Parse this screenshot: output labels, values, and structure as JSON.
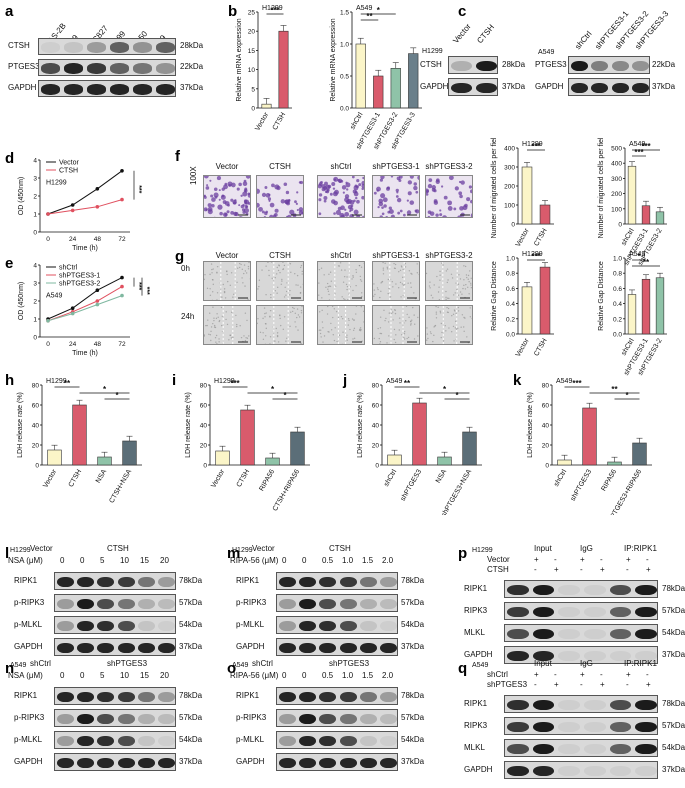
{
  "panel_letters": [
    "a",
    "b",
    "c",
    "d",
    "e",
    "f",
    "g",
    "h",
    "i",
    "j",
    "k",
    "l",
    "m",
    "n",
    "o",
    "p",
    "q"
  ],
  "a": {
    "lanes": [
      "BEAS-2B",
      "A549",
      "HCC827",
      "H1299",
      "H1650",
      "PC-9"
    ],
    "rows": [
      {
        "name": "CTSH",
        "kda": "28kDa",
        "levels": [
          0.05,
          0.1,
          0.3,
          0.6,
          0.35,
          0.6
        ]
      },
      {
        "name": "PTGES3",
        "kda": "22kDa",
        "levels": [
          0.7,
          0.9,
          0.8,
          0.6,
          0.5,
          0.35
        ]
      },
      {
        "name": "GAPDH",
        "kda": "37kDa",
        "levels": [
          0.9,
          0.9,
          0.9,
          0.9,
          0.9,
          0.9
        ]
      }
    ]
  },
  "b": {
    "h1299": {
      "cell": "H1299",
      "ylabel": "Relative mRNA expression",
      "categories": [
        "Vector",
        "CTSH"
      ],
      "values": [
        1,
        20
      ],
      "ylim": [
        0,
        25
      ],
      "ticks": [
        "0",
        "5",
        "10",
        "15",
        "20",
        "25"
      ],
      "sig": "***"
    },
    "a549": {
      "cell": "A549",
      "ylabel": "Relative mRNA expression",
      "categories": [
        "shCtrl",
        "shPTGES3-1",
        "shPTGES3-2",
        "shPTGES3-3"
      ],
      "values": [
        1.0,
        0.5,
        0.62,
        0.85
      ],
      "ylim": [
        0,
        1.5
      ],
      "ticks": [
        "0.0",
        "0.5",
        "1.0",
        "1.5"
      ],
      "sig": [
        "*",
        "**"
      ]
    }
  },
  "c": {
    "left": {
      "cell": "H1299",
      "lanes": [
        "Vector",
        "CTSH"
      ],
      "rows": [
        {
          "name": "CTSH",
          "kda": "28kDa"
        },
        {
          "name": "GAPDH",
          "kda": "37kDa"
        }
      ]
    },
    "right": {
      "cell": "A549",
      "lanes": [
        "shCtrl",
        "shPTGES3-1",
        "shPTGES3-2",
        "shPTGES3-3"
      ],
      "rows": [
        {
          "name": "PTGES3",
          "kda": "22kDa"
        },
        {
          "name": "GAPDH",
          "kda": "37kDa"
        }
      ]
    }
  },
  "d": {
    "cell": "H1299",
    "ylabel": "OD (450nm)",
    "xlabel": "Time (h)",
    "x": [
      "0",
      "24",
      "48",
      "72"
    ],
    "ylim": [
      0,
      4
    ],
    "yticks": [
      "0",
      "1",
      "2",
      "3",
      "4"
    ],
    "legend": [
      "Vector",
      "CTSH"
    ],
    "series": [
      {
        "name": "Vector",
        "values": [
          1.0,
          1.5,
          2.4,
          3.4
        ]
      },
      {
        "name": "CTSH",
        "values": [
          1.0,
          1.2,
          1.4,
          1.8
        ]
      }
    ],
    "sig": "***"
  },
  "e": {
    "cell": "A549",
    "ylabel": "OD (450nm)",
    "xlabel": "Time (h)",
    "x": [
      "0",
      "24",
      "48",
      "72"
    ],
    "ylim": [
      0,
      4
    ],
    "yticks": [
      "0",
      "1",
      "2",
      "3",
      "4"
    ],
    "legend": [
      "shCtrl",
      "shPTGES3-1",
      "shPTGES3-2"
    ],
    "series": [
      {
        "name": "shCtrl",
        "values": [
          1.0,
          1.6,
          2.6,
          3.3
        ]
      },
      {
        "name": "shPTGES3-1",
        "values": [
          0.9,
          1.4,
          2.0,
          2.8
        ]
      },
      {
        "name": "shPTGES3-2",
        "values": [
          0.9,
          1.3,
          1.8,
          2.3
        ]
      }
    ],
    "sig": [
      "***",
      "***"
    ]
  },
  "f": {
    "mag": "100X",
    "labels": [
      "Vector",
      "CTSH",
      "shCtrl",
      "shPTGES3-1",
      "shPTGES3-2"
    ],
    "h1299": {
      "cell": "H1299",
      "ylabel": "Number of migrated cells per field",
      "categories": [
        "Vector",
        "CTSH"
      ],
      "values": [
        300,
        100
      ],
      "ylim": [
        0,
        400
      ],
      "ticks": [
        "0",
        "100",
        "200",
        "300",
        "400"
      ],
      "sig": "***"
    },
    "a549": {
      "cell": "A549",
      "ylabel": "Number of migrated cells per field",
      "categories": [
        "shCtrl",
        "shPTGES3-1",
        "shPTGES3-2"
      ],
      "values": [
        380,
        120,
        80
      ],
      "ylim": [
        0,
        500
      ],
      "ticks": [
        "0",
        "100",
        "200",
        "300",
        "400",
        "500"
      ],
      "sig": [
        "***",
        "***"
      ]
    }
  },
  "g": {
    "rows": [
      "0h",
      "24h"
    ],
    "labels": [
      "Vector",
      "CTSH",
      "shCtrl",
      "shPTGES3-1",
      "shPTGES3-2"
    ],
    "h1299": {
      "cell": "H1299",
      "ylabel": "Relative Gap Distance",
      "categories": [
        "Vector",
        "CTSH"
      ],
      "values": [
        0.62,
        0.88
      ],
      "ylim": [
        0,
        1.0
      ],
      "ticks": [
        "0.0",
        "0.2",
        "0.4",
        "0.6",
        "0.8",
        "1.0"
      ],
      "sig": "***"
    },
    "a549": {
      "cell": "A549",
      "ylabel": "Relative Gap Distance",
      "categories": [
        "shCtrl",
        "shPTGES3-1",
        "shPTGES3-2"
      ],
      "values": [
        0.52,
        0.72,
        0.74
      ],
      "ylim": [
        0,
        1.0
      ],
      "ticks": [
        "0.0",
        "0.2",
        "0.4",
        "0.6",
        "0.8",
        "1.0"
      ],
      "sig": [
        "*",
        "**"
      ]
    }
  },
  "h": {
    "cell": "H1299",
    "ylabel": "LDH release rate (%)",
    "categories": [
      "Vector",
      "CTSH",
      "NSA",
      "CTSH+NSA"
    ],
    "values": [
      15,
      60,
      8,
      24
    ],
    "ylim": [
      0,
      80
    ],
    "ticks": [
      "0",
      "20",
      "40",
      "60",
      "80"
    ],
    "sig": [
      "**",
      "*",
      "*"
    ]
  },
  "i": {
    "cell": "H1299",
    "ylabel": "LDH release rate (%)",
    "categories": [
      "Vector",
      "CTSH",
      "RIPA56",
      "CTSH+RIPA56"
    ],
    "values": [
      14,
      55,
      7,
      33
    ],
    "ylim": [
      0,
      80
    ],
    "ticks": [
      "0",
      "20",
      "40",
      "60",
      "80"
    ],
    "sig": [
      "***",
      "*",
      "*"
    ]
  },
  "j": {
    "cell": "A549",
    "ylabel": "LDH release rate (%)",
    "categories": [
      "shCtrl",
      "shPTGES3",
      "NSA",
      "shPTGES3+NSA"
    ],
    "values": [
      10,
      62,
      8,
      33
    ],
    "ylim": [
      0,
      80
    ],
    "ticks": [
      "0",
      "20",
      "40",
      "60",
      "80"
    ],
    "sig": [
      "**",
      "*",
      "*"
    ]
  },
  "k": {
    "cell": "A549",
    "ylabel": "LDH release rate (%)",
    "categories": [
      "shCtrl",
      "shPTGES3",
      "RIPA56",
      "shPTGES3+RIPA56"
    ],
    "values": [
      5,
      57,
      3,
      22
    ],
    "ylim": [
      0,
      80
    ],
    "ticks": [
      "0",
      "20",
      "40",
      "60",
      "80"
    ],
    "sig": [
      "***",
      "**",
      "*"
    ]
  },
  "l": {
    "cell": "H1299",
    "ctrl": "Vector",
    "treat": "CTSH",
    "dose_label": "NSA (μM)",
    "doses": [
      "0",
      "0",
      "5",
      "10",
      "15",
      "20"
    ],
    "rows": [
      {
        "name": "RIPK1",
        "kda": "78kDa"
      },
      {
        "name": "p-RIPK3",
        "kda": "57kDa"
      },
      {
        "name": "p-MLKL",
        "kda": "54kDa"
      },
      {
        "name": "GAPDH",
        "kda": "37kDa"
      }
    ]
  },
  "m": {
    "cell": "H1299",
    "ctrl": "Vector",
    "treat": "CTSH",
    "dose_label": "RIPA-56 (μM)",
    "doses": [
      "0",
      "0",
      "0.5",
      "1.0",
      "1.5",
      "2.0"
    ],
    "rows": [
      {
        "name": "RIPK1",
        "kda": "78kDa"
      },
      {
        "name": "p-RIPK3",
        "kda": "57kDa"
      },
      {
        "name": "p-MLKL",
        "kda": "54kDa"
      },
      {
        "name": "GAPDH",
        "kda": "37kDa"
      }
    ]
  },
  "n": {
    "cell": "A549",
    "ctrl": "shCtrl",
    "treat": "shPTGES3",
    "dose_label": "NSA (μM)",
    "doses": [
      "0",
      "0",
      "5",
      "10",
      "15",
      "20"
    ],
    "rows": [
      {
        "name": "RIPK1",
        "kda": "78kDa"
      },
      {
        "name": "p-RIPK3",
        "kda": "57kDa"
      },
      {
        "name": "p-MLKL",
        "kda": "54kDa"
      },
      {
        "name": "GAPDH",
        "kda": "37kDa"
      }
    ]
  },
  "o": {
    "cell": "A549",
    "ctrl": "shCtrl",
    "treat": "shPTGES3",
    "dose_label": "RIPA-56 (μM)",
    "doses": [
      "0",
      "0",
      "0.5",
      "1.0",
      "1.5",
      "2.0"
    ],
    "rows": [
      {
        "name": "RIPK1",
        "kda": "78kDa"
      },
      {
        "name": "p-RIPK3",
        "kda": "57kDa"
      },
      {
        "name": "p-MLKL",
        "kda": "54kDa"
      },
      {
        "name": "GAPDH",
        "kda": "37kDa"
      }
    ]
  },
  "p": {
    "cell": "H1299",
    "groups": [
      "Input",
      "IgG",
      "IP:RIPK1"
    ],
    "cond": [
      "Vector",
      "CTSH"
    ],
    "marks": [
      [
        "+",
        "-",
        "+",
        "-",
        "+",
        "-"
      ],
      [
        "-",
        "+",
        "-",
        "+",
        "-",
        "+"
      ]
    ],
    "rows": [
      {
        "name": "RIPK1",
        "kda": "78kDa"
      },
      {
        "name": "RIPK3",
        "kda": "57kDa"
      },
      {
        "name": "MLKL",
        "kda": "54kDa"
      },
      {
        "name": "GAPDH",
        "kda": "37kDa"
      }
    ]
  },
  "q": {
    "cell": "A549",
    "groups": [
      "Input",
      "IgG",
      "IP:RIPK1"
    ],
    "cond": [
      "shCtrl",
      "shPTGES3"
    ],
    "marks": [
      [
        "+",
        "-",
        "+",
        "-",
        "+",
        "-"
      ],
      [
        "-",
        "+",
        "-",
        "+",
        "-",
        "+"
      ]
    ],
    "rows": [
      {
        "name": "RIPK1",
        "kda": "78kDa"
      },
      {
        "name": "RIPK3",
        "kda": "57kDa"
      },
      {
        "name": "MLKL",
        "kda": "54kDa"
      },
      {
        "name": "GAPDH",
        "kda": "37kDa"
      }
    ]
  },
  "colors": {
    "vector": "#fbf5c8",
    "ctsh": "#d95b6c",
    "shctrl": "#fbf5c8",
    "sh1": "#d95b6c",
    "sh2": "#8fc3a8",
    "sh3": "#6a7f8a",
    "nsa": "#8fc3a8",
    "comb": "#5b6e78",
    "line_vector": "#111111",
    "line_ctsh": "#e0505f"
  }
}
